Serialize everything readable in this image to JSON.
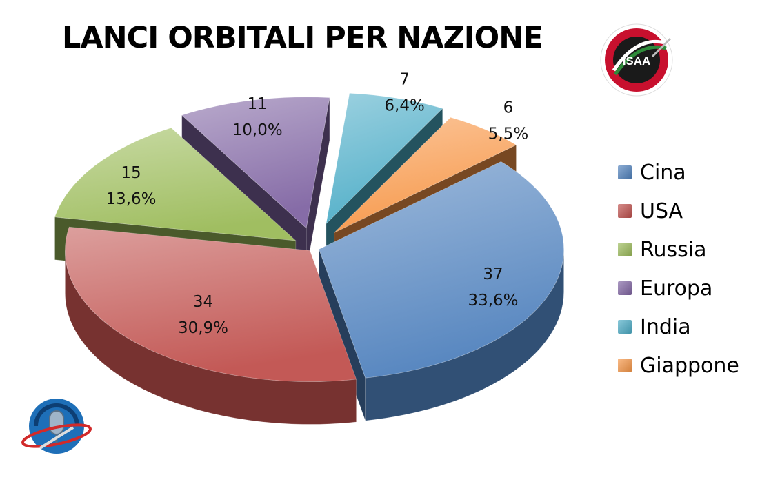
{
  "chart_data": {
    "type": "pie",
    "title": "LANCI ORBITALI PER NAZIONE",
    "legend_position": "right",
    "three_d": true,
    "exploded": true,
    "slices": [
      {
        "name": "Cina",
        "value": 37,
        "percent_label": "33,6%",
        "color": "#4F81BD"
      },
      {
        "name": "USA",
        "value": 34,
        "percent_label": "30,9%",
        "color": "#C0504D"
      },
      {
        "name": "Russia",
        "value": 15,
        "percent_label": "13,6%",
        "color": "#9BBB59"
      },
      {
        "name": "Europa",
        "value": 11,
        "percent_label": "10,0%",
        "color": "#8064A2"
      },
      {
        "name": "India",
        "value": 7,
        "percent_label": "6,4%",
        "color": "#4BACC6"
      },
      {
        "name": "Giappone",
        "value": 6,
        "percent_label": "5,5%",
        "color": "#F79646"
      }
    ]
  },
  "logos": {
    "top_right": {
      "text": "ISAA",
      "icon": "isaa-logo-icon"
    },
    "bottom_left": {
      "icon": "microphone-orbit-logo-icon"
    }
  }
}
